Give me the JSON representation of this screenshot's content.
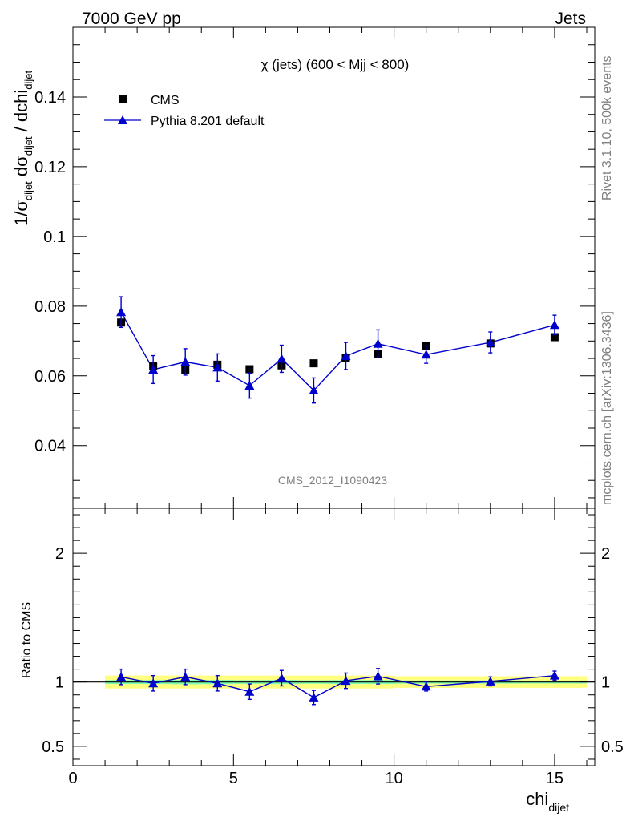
{
  "header": {
    "left": "7000 GeV pp",
    "right": "Jets"
  },
  "side_text": {
    "upper": "Rivet 3.1.10,  500k events",
    "lower": "mcplots.cern.ch [arXiv:1306.3436]"
  },
  "watermark": "CMS_2012_I1090423",
  "colors": {
    "data": "#000000",
    "mc": "#0000cc",
    "band_inner": "#7fffb3",
    "band_outer": "#ffff80"
  },
  "chart_data": [
    {
      "type": "scatter",
      "title": "χ (jets) (600 < Mjj <  800)",
      "ylabel": {
        "main": "1/σ",
        "sub1": "dijet",
        "mid": " dσ",
        "sub2": "dijet",
        "tail": " / dchi",
        "sub3": "dijet"
      },
      "ylim": [
        0.022,
        0.16
      ],
      "xlim": [
        0,
        16.25
      ],
      "yticks": [
        0.04,
        0.06,
        0.08,
        0.1,
        0.12,
        0.14
      ],
      "ytick_labels": [
        "0.04",
        "0.06",
        "0.08",
        "0.1",
        "0.12",
        "0.14"
      ],
      "legend_position": "top-left",
      "series": [
        {
          "name": "CMS",
          "marker": "square",
          "x": [
            1.5,
            2.5,
            3.5,
            4.5,
            5.5,
            6.5,
            7.5,
            8.5,
            9.5,
            11,
            13,
            15
          ],
          "y": [
            0.0753,
            0.0627,
            0.0617,
            0.0632,
            0.0619,
            0.063,
            0.0636,
            0.0651,
            0.0662,
            0.0686,
            0.0693,
            0.0711
          ],
          "yerr": [
            0.001,
            0.001,
            0.001,
            0.001,
            0.0008,
            0.001,
            0.0008,
            0.001,
            0.001,
            0.0008,
            0.0008,
            0.0008
          ]
        },
        {
          "name": "Pythia 8.201 default",
          "marker": "triangle",
          "x": [
            1.5,
            2.5,
            3.5,
            4.5,
            5.5,
            6.5,
            7.5,
            8.5,
            9.5,
            11,
            13,
            15
          ],
          "y": [
            0.0783,
            0.0618,
            0.064,
            0.0624,
            0.0572,
            0.0649,
            0.0558,
            0.0657,
            0.0692,
            0.0661,
            0.0696,
            0.0746
          ],
          "yerr": [
            0.0044,
            0.004,
            0.0038,
            0.0039,
            0.0036,
            0.0039,
            0.0036,
            0.0039,
            0.004,
            0.0025,
            0.003,
            0.0028
          ]
        }
      ]
    },
    {
      "type": "scatter",
      "ylabel": "Ratio to CMS",
      "xlabel": {
        "main": "chi",
        "sub": "dijet"
      },
      "ylim": [
        0.35,
        2.35
      ],
      "xlim": [
        0,
        16.25
      ],
      "yticks": [
        0.5,
        1,
        2
      ],
      "ytick_labels": [
        "0.5",
        "1",
        "2"
      ],
      "xticks": [
        0,
        5,
        10,
        15
      ],
      "xtick_labels": [
        "0",
        "5",
        "10",
        "15"
      ],
      "band_edges": [
        1,
        2,
        3,
        4,
        5,
        6,
        7,
        8,
        9,
        10,
        12,
        14,
        16
      ],
      "band_inner": [
        0.015,
        0.015,
        0.017,
        0.016,
        0.014,
        0.016,
        0.013,
        0.015,
        0.015,
        0.012,
        0.012,
        0.011
      ],
      "band_outer": [
        0.05,
        0.05,
        0.05,
        0.05,
        0.05,
        0.05,
        0.05,
        0.05,
        0.05,
        0.045,
        0.045,
        0.045
      ],
      "series": [
        {
          "name": "Pythia 8.201 default",
          "marker": "triangle",
          "x": [
            1.5,
            2.5,
            3.5,
            4.5,
            5.5,
            6.5,
            7.5,
            8.5,
            9.5,
            11,
            13,
            15
          ],
          "y": [
            1.04,
            0.99,
            1.04,
            0.99,
            0.925,
            1.03,
            0.88,
            1.01,
            1.045,
            0.965,
            1.005,
            1.05
          ],
          "yerr": [
            0.06,
            0.06,
            0.06,
            0.06,
            0.06,
            0.06,
            0.055,
            0.06,
            0.06,
            0.035,
            0.035,
            0.035
          ]
        }
      ]
    }
  ]
}
